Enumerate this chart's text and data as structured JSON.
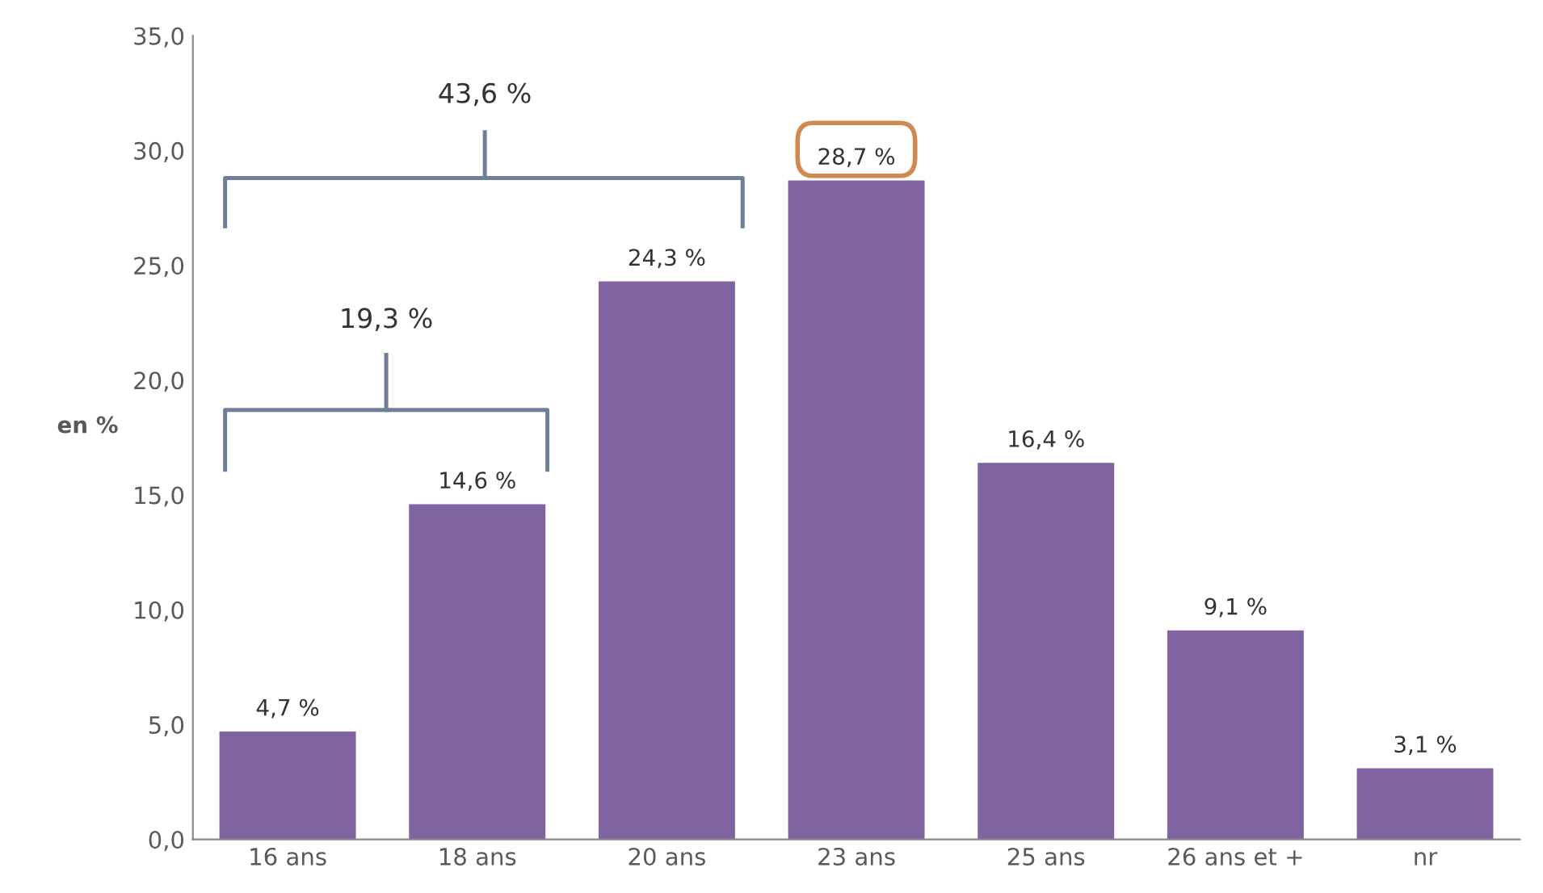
{
  "chart_data": {
    "type": "bar",
    "categories": [
      "16 ans",
      "18 ans",
      "20 ans",
      "23 ans",
      "25 ans",
      "26 ans et +",
      "nr"
    ],
    "values": [
      4.7,
      14.6,
      24.3,
      28.7,
      16.4,
      9.1,
      3.1
    ],
    "value_labels": [
      "4,7 %",
      "14,6 %",
      "24,3 %",
      "28,7 %",
      "16,4 %",
      "9,1 %",
      "3,1 %"
    ],
    "color": "#8064a2",
    "ylabel": "en %",
    "ylim": [
      0,
      35
    ],
    "yticks": [
      {
        "value": 0,
        "label": "0,0"
      },
      {
        "value": 5,
        "label": "5,0"
      },
      {
        "value": 10,
        "label": "10,0"
      },
      {
        "value": 15,
        "label": "15,0"
      },
      {
        "value": 20,
        "label": "20,0"
      },
      {
        "value": 25,
        "label": "25,0"
      },
      {
        "value": 30,
        "label": "30,0"
      },
      {
        "value": 35,
        "label": "35,0"
      }
    ],
    "annotations": [
      "43,6 %",
      "19,3 %"
    ],
    "grid": false
  }
}
